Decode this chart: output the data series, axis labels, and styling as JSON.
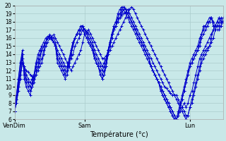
{
  "title": "",
  "xlabel": "Température (°c)",
  "ylabel": "",
  "ylim": [
    6,
    20
  ],
  "yticks": [
    6,
    7,
    8,
    9,
    10,
    11,
    12,
    13,
    14,
    15,
    16,
    17,
    18,
    19,
    20
  ],
  "bg_color": "#c8e8e8",
  "grid_color": "#aacccc",
  "line_color": "#0000cc",
  "xtick_labels": [
    "VenDim",
    "Sam",
    "Lun"
  ],
  "xtick_positions": [
    0,
    36,
    90
  ],
  "total_points": 108,
  "series": [
    [
      7.0,
      8.5,
      10.0,
      11.5,
      13.0,
      12.5,
      12.0,
      11.8,
      11.5,
      11.3,
      11.0,
      11.5,
      12.0,
      12.5,
      13.0,
      14.0,
      15.0,
      15.5,
      16.0,
      16.2,
      16.4,
      16.0,
      15.5,
      15.0,
      14.5,
      14.0,
      13.5,
      13.0,
      12.5,
      12.0,
      12.5,
      13.0,
      13.5,
      14.0,
      14.5,
      15.5,
      16.5,
      16.8,
      17.0,
      16.5,
      16.0,
      15.5,
      15.0,
      14.5,
      14.0,
      13.5,
      13.5,
      13.8,
      14.0,
      14.5,
      15.0,
      15.5,
      16.0,
      16.5,
      17.0,
      17.5,
      18.0,
      18.5,
      19.0,
      19.5,
      19.8,
      19.5,
      19.0,
      18.5,
      18.0,
      17.5,
      17.0,
      16.5,
      16.0,
      15.5,
      15.0,
      14.5,
      14.0,
      13.5,
      13.0,
      12.5,
      12.0,
      11.5,
      11.0,
      10.5,
      10.0,
      9.5,
      9.0,
      8.5,
      8.0,
      7.5,
      7.0,
      6.5,
      6.0,
      6.5,
      7.5,
      8.5,
      9.5,
      10.5,
      11.5,
      12.5,
      13.5,
      14.0,
      14.5,
      14.8,
      15.0,
      15.5,
      16.0,
      17.0,
      17.5,
      18.0,
      18.5,
      18.0
    ],
    [
      7.0,
      8.0,
      9.5,
      11.0,
      13.0,
      12.5,
      11.5,
      11.0,
      10.5,
      11.0,
      11.5,
      12.0,
      12.5,
      13.0,
      13.5,
      14.5,
      15.5,
      16.0,
      16.4,
      16.2,
      16.0,
      15.5,
      14.5,
      14.0,
      13.5,
      13.0,
      12.5,
      12.5,
      13.0,
      13.5,
      14.0,
      15.0,
      15.5,
      16.0,
      16.5,
      17.0,
      17.0,
      16.8,
      16.5,
      16.0,
      15.5,
      14.5,
      14.0,
      13.5,
      13.0,
      12.5,
      13.0,
      13.5,
      14.5,
      15.5,
      16.5,
      17.0,
      17.5,
      18.0,
      18.5,
      18.8,
      19.0,
      19.2,
      19.5,
      19.0,
      18.5,
      18.0,
      17.5,
      17.0,
      16.5,
      16.0,
      15.5,
      15.0,
      14.5,
      14.0,
      13.5,
      13.0,
      12.5,
      12.0,
      11.5,
      11.0,
      10.5,
      10.0,
      9.8,
      9.5,
      9.2,
      9.0,
      9.0,
      9.0,
      8.5,
      8.0,
      7.5,
      7.0,
      6.5,
      6.5,
      7.5,
      8.0,
      9.0,
      10.0,
      11.0,
      12.0,
      13.0,
      13.5,
      14.0,
      14.5,
      15.0,
      16.0,
      17.0,
      17.5,
      18.0,
      18.5,
      18.0,
      18.0
    ],
    [
      7.0,
      8.5,
      10.5,
      12.0,
      13.5,
      12.0,
      11.0,
      10.5,
      10.0,
      10.5,
      11.5,
      12.5,
      13.0,
      13.5,
      14.5,
      15.0,
      15.5,
      16.0,
      16.2,
      16.0,
      15.5,
      15.0,
      14.0,
      13.5,
      13.0,
      12.5,
      12.0,
      12.5,
      13.5,
      14.5,
      15.5,
      16.0,
      16.5,
      17.0,
      17.0,
      17.5,
      17.0,
      16.5,
      16.0,
      15.5,
      15.0,
      14.0,
      13.5,
      13.0,
      12.5,
      12.0,
      12.5,
      13.5,
      14.5,
      15.5,
      16.5,
      17.5,
      18.0,
      18.5,
      19.0,
      19.2,
      19.5,
      19.0,
      18.5,
      18.0,
      17.5,
      17.0,
      16.5,
      16.0,
      15.5,
      15.0,
      14.5,
      14.0,
      13.5,
      13.0,
      12.5,
      12.0,
      11.5,
      11.0,
      10.5,
      10.0,
      9.5,
      9.0,
      8.5,
      8.0,
      7.5,
      7.0,
      6.5,
      6.0,
      6.5,
      7.0,
      7.5,
      8.0,
      7.5,
      8.0,
      9.0,
      9.5,
      10.5,
      11.5,
      12.5,
      13.5,
      14.0,
      14.5,
      15.0,
      15.5,
      16.0,
      16.5,
      17.0,
      17.5,
      18.0,
      18.5,
      18.0,
      18.0
    ],
    [
      7.0,
      9.0,
      11.0,
      13.0,
      14.0,
      11.5,
      10.5,
      10.0,
      9.5,
      10.0,
      11.0,
      12.5,
      13.5,
      14.0,
      15.0,
      15.0,
      15.5,
      16.0,
      16.2,
      16.0,
      15.5,
      15.0,
      13.5,
      13.0,
      12.5,
      12.0,
      11.5,
      12.0,
      13.0,
      14.5,
      15.5,
      16.0,
      16.5,
      16.5,
      17.0,
      17.0,
      16.5,
      16.0,
      15.5,
      15.0,
      14.5,
      13.5,
      13.0,
      12.5,
      12.0,
      11.5,
      12.0,
      13.0,
      14.5,
      15.5,
      16.5,
      17.0,
      17.5,
      18.5,
      19.0,
      19.5,
      19.8,
      19.5,
      19.0,
      18.5,
      18.0,
      17.5,
      17.0,
      16.5,
      16.0,
      15.5,
      15.0,
      14.5,
      14.0,
      13.5,
      12.5,
      12.0,
      11.5,
      11.0,
      10.5,
      10.0,
      9.5,
      9.0,
      8.5,
      8.0,
      7.5,
      7.0,
      6.5,
      6.0,
      6.5,
      7.5,
      8.5,
      9.5,
      10.5,
      11.5,
      12.5,
      13.0,
      13.5,
      14.0,
      14.5,
      15.0,
      16.0,
      16.5,
      17.0,
      17.5,
      18.0,
      18.5,
      17.5,
      17.5,
      17.5,
      17.5,
      17.5,
      18.0
    ],
    [
      7.0,
      9.0,
      11.0,
      13.0,
      14.5,
      11.0,
      10.0,
      9.5,
      9.0,
      10.0,
      11.5,
      13.0,
      14.0,
      14.5,
      15.0,
      15.5,
      16.0,
      16.2,
      16.2,
      16.0,
      15.5,
      15.0,
      13.0,
      12.5,
      12.0,
      11.5,
      11.0,
      11.5,
      12.5,
      14.0,
      15.0,
      16.0,
      16.5,
      17.0,
      17.5,
      17.5,
      16.5,
      16.0,
      15.5,
      15.0,
      14.5,
      13.5,
      13.0,
      12.5,
      11.5,
      11.0,
      11.5,
      12.5,
      14.0,
      15.5,
      16.5,
      17.5,
      18.0,
      19.0,
      19.5,
      19.8,
      20.0,
      19.5,
      19.0,
      18.5,
      18.0,
      17.5,
      17.0,
      16.5,
      16.0,
      15.5,
      15.0,
      14.5,
      14.0,
      13.5,
      12.5,
      12.0,
      11.5,
      11.0,
      10.5,
      9.5,
      9.0,
      8.5,
      8.0,
      7.5,
      7.0,
      6.5,
      6.0,
      6.0,
      6.5,
      7.5,
      8.5,
      9.5,
      10.5,
      11.5,
      12.5,
      13.0,
      13.5,
      14.0,
      14.5,
      15.5,
      16.5,
      17.0,
      17.5,
      18.0,
      18.5,
      18.5,
      18.0,
      17.5,
      17.5,
      17.5,
      18.0,
      18.5
    ],
    [
      7.0,
      8.0,
      10.0,
      12.0,
      14.0,
      12.0,
      11.0,
      10.5,
      10.0,
      10.0,
      10.5,
      11.5,
      12.5,
      13.5,
      14.5,
      15.0,
      15.5,
      16.0,
      16.0,
      15.8,
      15.5,
      15.0,
      13.5,
      13.0,
      12.5,
      12.0,
      11.5,
      12.0,
      13.0,
      14.0,
      15.0,
      16.0,
      16.5,
      17.0,
      17.0,
      17.5,
      17.0,
      16.5,
      16.0,
      15.5,
      15.0,
      13.5,
      13.0,
      12.5,
      11.5,
      11.0,
      11.5,
      12.5,
      14.0,
      15.0,
      16.0,
      17.0,
      17.5,
      18.0,
      18.5,
      19.0,
      19.5,
      19.5,
      19.0,
      18.5,
      18.0,
      17.5,
      17.0,
      16.5,
      16.0,
      15.5,
      15.0,
      14.5,
      14.0,
      13.5,
      12.5,
      12.0,
      11.5,
      11.0,
      10.5,
      9.5,
      9.0,
      8.5,
      8.0,
      7.5,
      7.0,
      6.5,
      6.0,
      6.0,
      7.0,
      8.0,
      9.0,
      10.0,
      11.0,
      12.0,
      13.0,
      13.5,
      14.0,
      14.5,
      15.0,
      16.0,
      16.5,
      17.5,
      17.5,
      18.0,
      18.0,
      18.5,
      17.5,
      17.0,
      17.0,
      17.0,
      17.5,
      18.0
    ]
  ]
}
